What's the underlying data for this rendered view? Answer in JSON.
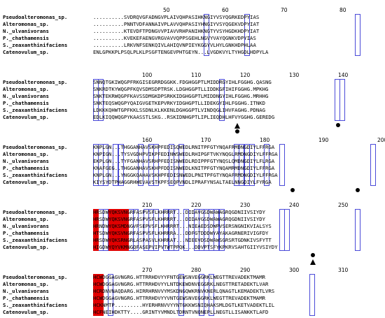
{
  "species": [
    "Pseudoalteromonas_sp.",
    "Alteromonas_sp.",
    "N._ulvanivorans",
    "P._chathamensis",
    "S._zeaxanthinifaciens",
    "Catenovulum_sp."
  ],
  "blocks": [
    {
      "ruler": [
        "50",
        "60",
        "70",
        "80",
        "90"
      ],
      "seqs": [
        "..........SVDRQVGFADNGVPLAIVQHPASIHKNGIYVSYQGRKEDPYIAS",
        "..........PNNTVDFANNAIVPLAVVQHPASIYHNGIYVSYQGEKVDPYIAT",
        "..........KTEVDFTPDNGVVPIAVVRHPANIHKNGTYVSYHGDKHDPYIAT",
        "..........KVEKEFAENGVRGVAVVQPPSGEHLNGVYVAYQGNKVDPYIAS",
        "..........LRKVNFSENKQIVLAHIQVNPIEYKGGYVLHYLGNKHDPHLAA",
        "ENLGPKKPLPSQLPLKLPSGFTENGEVPHTGEYN...LVGDKVYLTYHGDLHDPYLA"
      ]
    },
    {
      "ruler": [
        "100",
        "110",
        "120",
        "130",
        "140",
        "150"
      ],
      "seqs": [
        "SNNQTGKIWQGPFRKGISEGRRDGGKK.FDGHGGPTLMIDDRGYIHLFGGHG.QASNG",
        "SNKRDTKYWQGPFKQVSDMSDPTRSK.LDGHGGPTLLIDDKGFIHIFGGHG.MPKHG",
        "SNKTEKRWQGPFKAVSSDMGKDPSRKKIDGHGGPTLMIDDNGYIHLFGGHG.MRHHG",
        "SNKTEQSWQGPYQAIGVGETKEPVRKYIDGHGPTLLIDEKGYIHLFGGHG.ITNKD",
        "LDKKKQHWTGPFKKLSSDNLKLKKENLDGHGGPTLVINDQGLIHVFAGHG.PDNAG",
        "EDLKIQQWQGPYKAASSTLSKG..RSKIDNHGPTLIPLIEQDHLHFVYGGHG.GEREDG"
      ],
      "markers": [
        {
          "type": "triangle",
          "col": 28
        },
        {
          "type": "dot",
          "col": 28
        },
        {
          "type": "dot",
          "col": 48
        }
      ]
    },
    {
      "ruler": [
        "160",
        "170",
        "180",
        "190",
        "200"
      ],
      "seqs": [
        "KNPLGN...THGGANHAVSKHPFEDISQWEDLRNITPFGTYNQAFRMDNGDIYLFFRGA",
        "KNPIGN...TYSVGDHPVIKPFEDINWSWEDLRHIPGFTVKYNQGLRMDNGDIYLFFRGA",
        "EKPLGN...TYFGANHAVSRHPFEDISNWEDLRDIPPFGTYNQSLQMDNGDIYLFLRGA",
        "KNAFGEG..THGGANHAVSKHPFDDISNWEDLKNITPFGTYNQAMRMDNGDIYLFFRGA",
        "KNPLGN...YNGGKQAHAVSKHPFEDISNWEDLPNITPFGTYNQAFRMDNGDIYLFFRGA",
        "KIYSYDTPHAGGRHWEVAVSTKPFSEQPVNDLIPRAFYNSALTAELNNGDIYLFYRGA"
      ],
      "markers": [
        {
          "type": "dot",
          "col": 39
        },
        {
          "type": "dot",
          "col": 52
        }
      ]
    },
    {
      "ruler": [
        "210",
        "220",
        "230",
        "240",
        "250",
        "260"
      ],
      "seqs": [
        "HRSDWYQKSVNGRFASPVSFLKHRRRT...DIDAVGSDWAWAGRQGDNIIVSIYDY",
        "HRSDWYQKSVNGRFASPVSFLKHRRRT...DIDAVGSDWAWAGRQGDNIIVSIYDY",
        "HRNDWYQKSMDNGVFSEPVSFLKHRRRT...NIEAEDSDWPVSERSNGNIKVIALSYS",
        "HTSDWYQKSVNGRFASPVSFLKHRRRA...DDFGTDDDWYAYAKAGRNERIVIGFDY",
        "HRSDWYQKSRNGRLASPASVLKHRRAT...NIEEVDSDWAWSGRSRTGDNKIVSFYTT",
        "HIGDWYQYVKMNGQFASEPVIPVTWTPPQK...DDVPTSFYKPKRVSAHTGIIYVSIYDY"
      ],
      "markers": [
        {
          "type": "dot",
          "col": 43
        },
        {
          "type": "triangle",
          "col": 43
        }
      ]
    },
    {
      "ruler": [
        "270",
        "280",
        "290",
        "300",
        "310",
        "320"
      ],
      "seqs": [
        "HCWDGGAGVNGRG.HTTRRHDVYYFNTGEWSNVEGGRKLWEGTTREVADEKTMAMR",
        "HCWDGGAGVNGRG.HTTRRHDVYYLNTDKEWDNVEGGRKLNEGTTRETADEKTLVAR",
        "HCRDNVNAQDARG.HIRRHRNVVYMSKDNGQWKRNVKNERLQNAGTLKEMADEKTLVRS",
        "HCWDGGAGVNGRG.HTTRRHDVYYVNTGEWSNVEGGRKLWEGTTREVADEKTMAMR",
        "HCKNMTP.........HYERHRNVVYYNTGKKWSNIQHAKSMLDGTLKETVADEKTLIL",
        "HCFNEIHDKTTY....GRINTYVMNDLTDRNTVNQNEPLLNEGTLLISANKKTLAFD"
      ],
      "markers": [
        {
          "type": "triangle",
          "col": 17
        }
      ]
    }
  ]
}
